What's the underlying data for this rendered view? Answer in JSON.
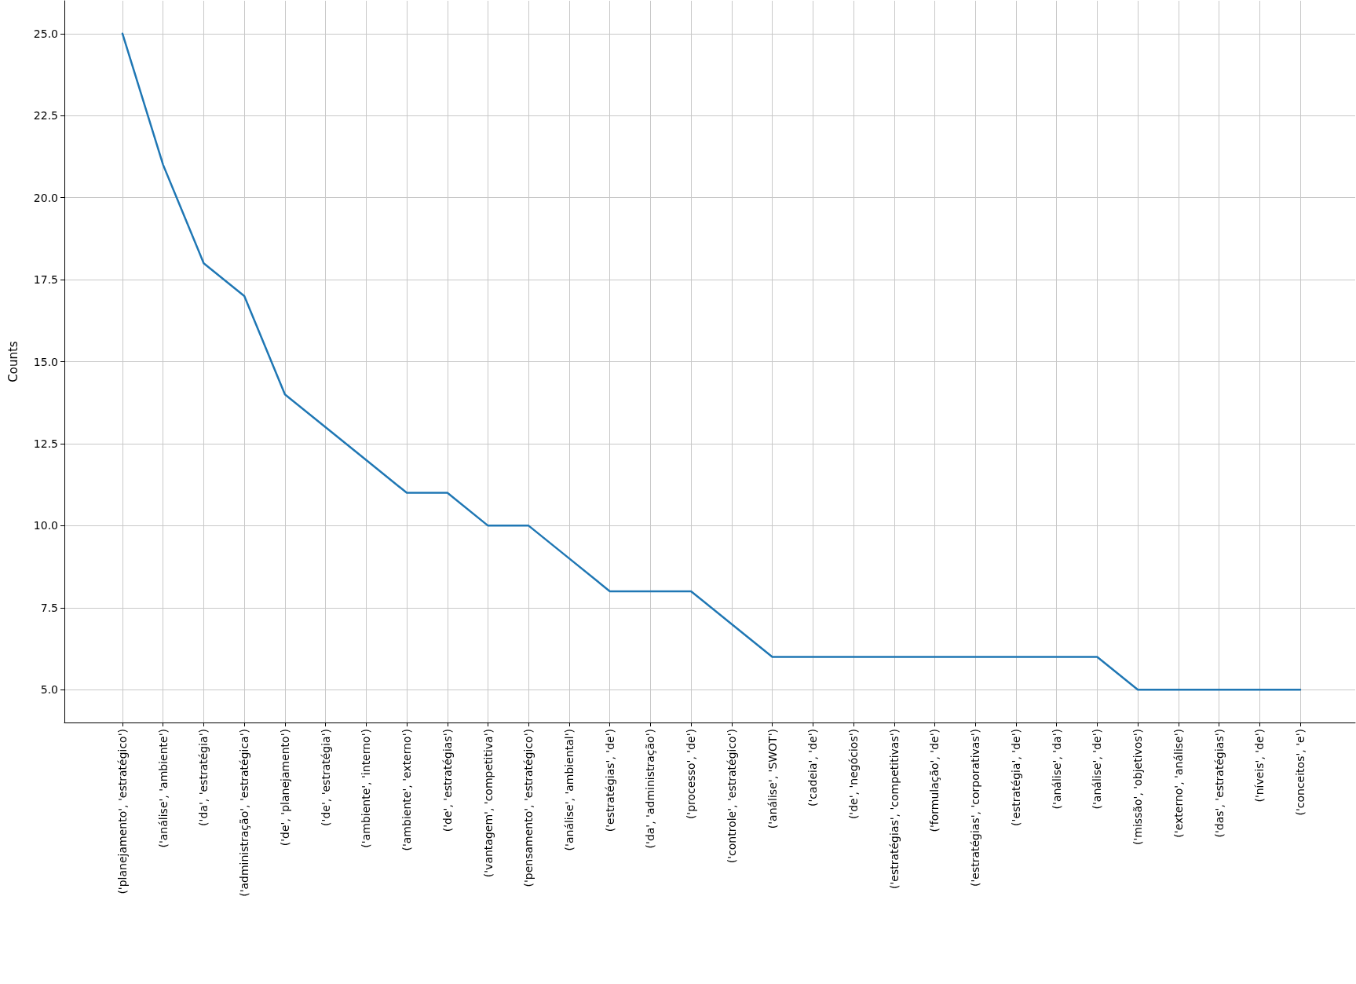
{
  "chart_data": {
    "type": "line",
    "ylabel": "Counts",
    "categories": [
      "('planejamento', 'estratégico')",
      "('análise', 'ambiente')",
      "('da', 'estratégia')",
      "('administração', 'estratégica')",
      "('de', 'planejamento')",
      "('de', 'estratégia')",
      "('ambiente', 'interno')",
      "('ambiente', 'externo')",
      "('de', 'estratégias')",
      "('vantagem', 'competitiva')",
      "('pensamento', 'estratégico')",
      "('análise', 'ambiental')",
      "('estratégias', 'de')",
      "('da', 'administração')",
      "('processo', 'de')",
      "('controle', 'estratégico')",
      "('análise', 'SWOT')",
      "('cadeia', 'de')",
      "('de', 'negócios')",
      "('estratégias', 'competitivas')",
      "('formulação', 'de')",
      "('estratégias', 'corporativas')",
      "('estratégia', 'de')",
      "('análise', 'da')",
      "('análise', 'de')",
      "('missão', 'objetivos')",
      "('externo', 'análise')",
      "('das', 'estratégias')",
      "('níveis', 'de')",
      "('conceitos', 'e')"
    ],
    "series": [
      {
        "color": "#1f77b4",
        "values": [
          25,
          21,
          18,
          17,
          14,
          13,
          12,
          11,
          11,
          10,
          10,
          9,
          8,
          8,
          8,
          7,
          6,
          6,
          6,
          6,
          6,
          6,
          6,
          6,
          6,
          5,
          5,
          5,
          5,
          5
        ]
      }
    ],
    "ylim": [
      4,
      26
    ],
    "yticks": [
      {
        "value": 5,
        "label": "5.0"
      },
      {
        "value": 7.5,
        "label": "7.5"
      },
      {
        "value": 10,
        "label": "10.0"
      },
      {
        "value": 12.5,
        "label": "12.5"
      },
      {
        "value": 15,
        "label": "15.0"
      },
      {
        "value": 17.5,
        "label": "17.5"
      },
      {
        "value": 20,
        "label": "20.0"
      },
      {
        "value": 22.5,
        "label": "22.5"
      },
      {
        "value": 25,
        "label": "25.0"
      }
    ],
    "grid": true,
    "marker": "none",
    "line_style": "solid"
  }
}
